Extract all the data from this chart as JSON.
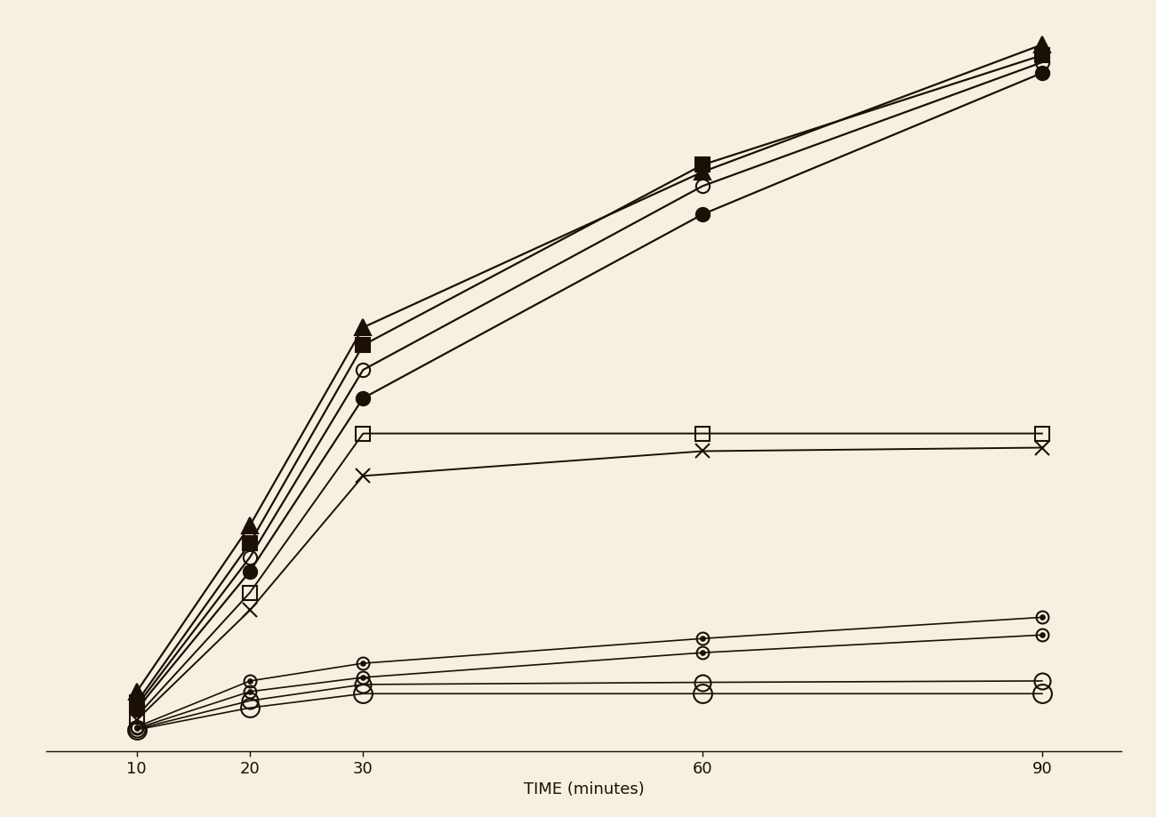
{
  "x_values": [
    10,
    20,
    30,
    60,
    90
  ],
  "series": [
    {
      "label": "filled_triangle",
      "y": [
        55,
        290,
        570,
        790,
        970
      ],
      "marker": "^",
      "color": "#1a1008",
      "markersize": 13,
      "markerfacecolor": "#1a1008",
      "linewidth": 1.6,
      "zorder": 6
    },
    {
      "label": "filled_square",
      "y": [
        40,
        265,
        545,
        800,
        955
      ],
      "marker": "s",
      "color": "#1a1008",
      "markersize": 11,
      "markerfacecolor": "#1a1008",
      "linewidth": 1.6,
      "zorder": 6
    },
    {
      "label": "open_circle_high",
      "y": [
        35,
        245,
        510,
        770,
        945
      ],
      "marker": "o",
      "color": "#1a1008",
      "markersize": 11,
      "markerfacecolor": "none",
      "linewidth": 1.6,
      "zorder": 6
    },
    {
      "label": "filled_circle",
      "y": [
        30,
        225,
        470,
        730,
        930
      ],
      "marker": "o",
      "color": "#1a1008",
      "markersize": 11,
      "markerfacecolor": "#1a1008",
      "linewidth": 1.6,
      "zorder": 6
    },
    {
      "label": "open_square_plateau",
      "y": [
        20,
        195,
        420,
        420,
        420
      ],
      "marker": "s",
      "color": "#1a1008",
      "markersize": 11,
      "markerfacecolor": "none",
      "linewidth": 1.4,
      "zorder": 5
    },
    {
      "label": "x_marker_plateau",
      "y": [
        15,
        170,
        360,
        395,
        400
      ],
      "marker": "x",
      "color": "#1a1008",
      "markersize": 11,
      "markerfacecolor": "#1a1008",
      "linewidth": 1.4,
      "zorder": 5
    },
    {
      "label": "dot_circle_rising",
      "y": [
        5,
        70,
        95,
        130,
        160
      ],
      "marker": "o",
      "color": "#1a1008",
      "markersize": 10,
      "markerfacecolor": "none",
      "linewidth": 1.2,
      "inner_dot": true,
      "zorder": 4
    },
    {
      "label": "open_circle_low1",
      "y": [
        3,
        55,
        75,
        110,
        135
      ],
      "marker": "o",
      "color": "#1a1008",
      "markersize": 10,
      "markerfacecolor": "none",
      "linewidth": 1.2,
      "inner_dot": true,
      "zorder": 4
    },
    {
      "label": "open_circle_low2",
      "y": [
        2,
        42,
        65,
        68,
        70
      ],
      "marker": "o",
      "color": "#1a1008",
      "markersize": 13,
      "markerfacecolor": "none",
      "linewidth": 1.2,
      "zorder": 3
    },
    {
      "label": "big_open_circle_lowest",
      "y": [
        1,
        32,
        52,
        52,
        52
      ],
      "marker": "o",
      "color": "#1a1008",
      "markersize": 15,
      "markerfacecolor": "none",
      "linewidth": 1.2,
      "zorder": 3
    }
  ],
  "x_ticks": [
    10,
    20,
    30,
    60,
    90
  ],
  "x_tick_labels": [
    "10",
    "20",
    "30",
    "60",
    "90"
  ],
  "x_label": "TIME (minutes)",
  "background_color": "#f5f0e0",
  "line_color": "#1a1008",
  "xlim": [
    2,
    97
  ],
  "ylim": [
    -30,
    1010
  ]
}
